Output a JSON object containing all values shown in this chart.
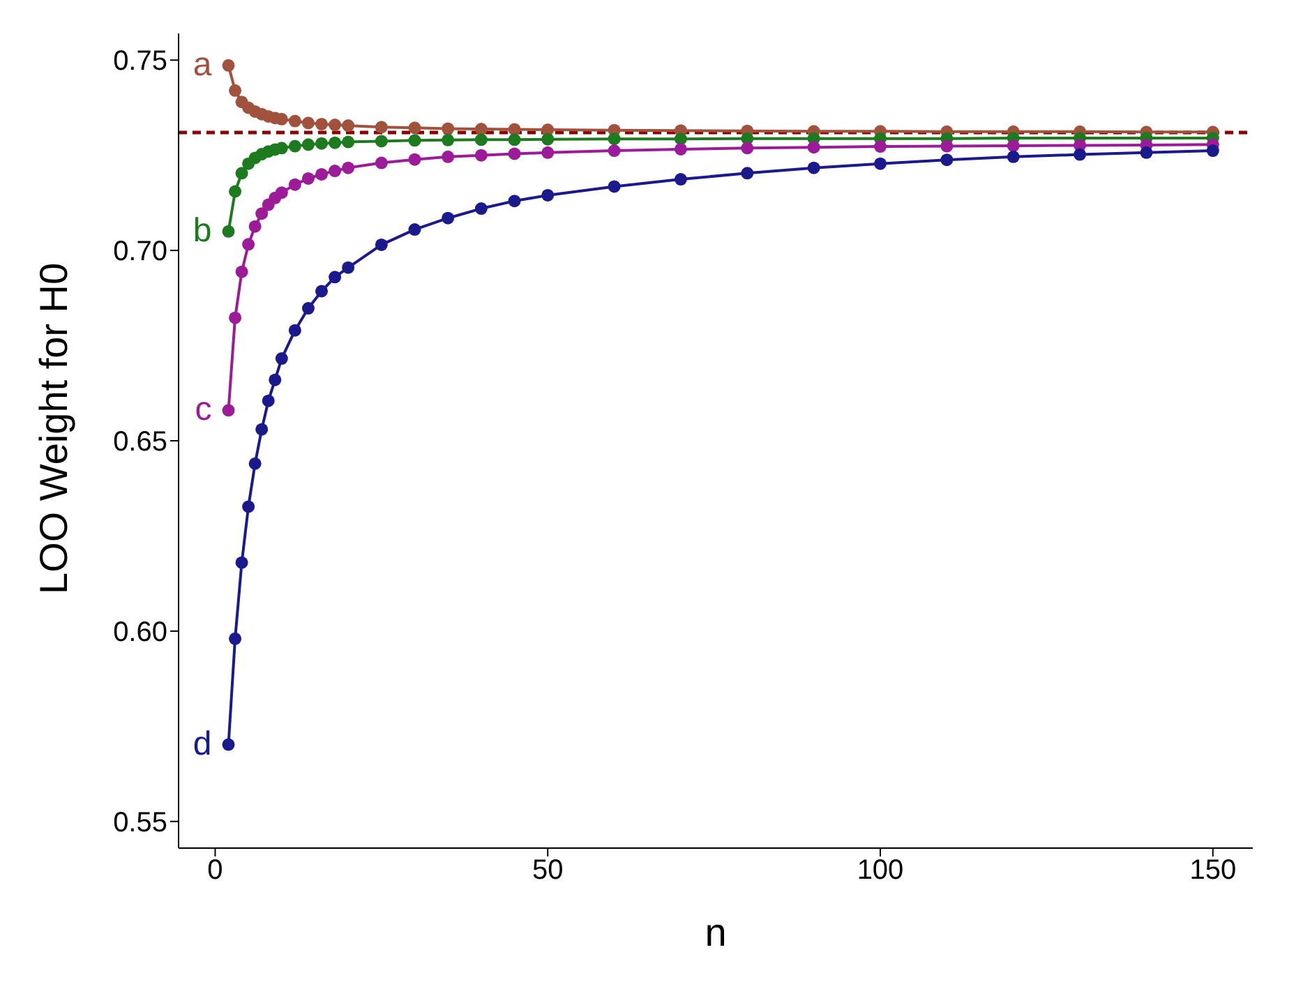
{
  "chart_data": {
    "type": "line",
    "xlabel": "n",
    "ylabel": "LOO Weight for H0",
    "x": [
      2,
      3,
      4,
      5,
      6,
      7,
      8,
      9,
      10,
      12,
      14,
      16,
      18,
      20,
      25,
      30,
      35,
      40,
      45,
      50,
      60,
      70,
      80,
      90,
      100,
      110,
      120,
      130,
      140,
      150
    ],
    "series": [
      {
        "name": "a",
        "color": "#a0523c",
        "values": [
          0.7486,
          0.742,
          0.739,
          0.7375,
          0.7365,
          0.7358,
          0.7352,
          0.7348,
          0.7345,
          0.734,
          0.7335,
          0.7332,
          0.733,
          0.7328,
          0.7324,
          0.7322,
          0.732,
          0.7319,
          0.7318,
          0.7317,
          0.7316,
          0.7315,
          0.7314,
          0.7313,
          0.7313,
          0.7312,
          0.7312,
          0.7312,
          0.7311,
          0.7311
        ]
      },
      {
        "name": "b",
        "color": "#1e7a1e",
        "values": [
          0.705,
          0.7155,
          0.7203,
          0.7228,
          0.7243,
          0.7253,
          0.726,
          0.7265,
          0.7269,
          0.7274,
          0.7278,
          0.7281,
          0.7283,
          0.7285,
          0.7287,
          0.7289,
          0.729,
          0.7291,
          0.7291,
          0.7292,
          0.7293,
          0.7293,
          0.7294,
          0.7294,
          0.7294,
          0.7294,
          0.7295,
          0.7295,
          0.7295,
          0.7295
        ]
      },
      {
        "name": "c",
        "color": "#9b1b98",
        "values": [
          0.658,
          0.6823,
          0.6944,
          0.7016,
          0.7063,
          0.7097,
          0.712,
          0.7138,
          0.7152,
          0.7173,
          0.7189,
          0.72,
          0.7209,
          0.7217,
          0.723,
          0.7239,
          0.7246,
          0.725,
          0.7254,
          0.7257,
          0.7262,
          0.7266,
          0.7269,
          0.7271,
          0.7273,
          0.7274,
          0.7275,
          0.7276,
          0.7277,
          0.7278
        ]
      },
      {
        "name": "d",
        "color": "#1a1a8c",
        "values": [
          0.5702,
          0.598,
          0.618,
          0.6327,
          0.644,
          0.653,
          0.6605,
          0.666,
          0.6716,
          0.679,
          0.6848,
          0.6893,
          0.693,
          0.6955,
          0.7015,
          0.7055,
          0.7085,
          0.711,
          0.713,
          0.7145,
          0.7168,
          0.7187,
          0.7203,
          0.7217,
          0.7228,
          0.7238,
          0.7246,
          0.7252,
          0.7257,
          0.7262
        ]
      }
    ],
    "xlim": [
      -5.5,
      156
    ],
    "xticks": [
      0,
      50,
      100,
      150
    ],
    "ylim": [
      0.543,
      0.757
    ],
    "yticks": [
      0.55,
      {
        "value": 0.6,
        "label": "0.60"
      },
      0.65,
      {
        "value": 0.7,
        "label": "0.70"
      },
      0.75
    ],
    "ref_lines": [
      {
        "axis": "y",
        "value": 0.731,
        "color": "#8b0000",
        "line_style": "dashed"
      }
    ],
    "marker": "circle",
    "line_style": "solid",
    "grid": false,
    "legend": false
  }
}
